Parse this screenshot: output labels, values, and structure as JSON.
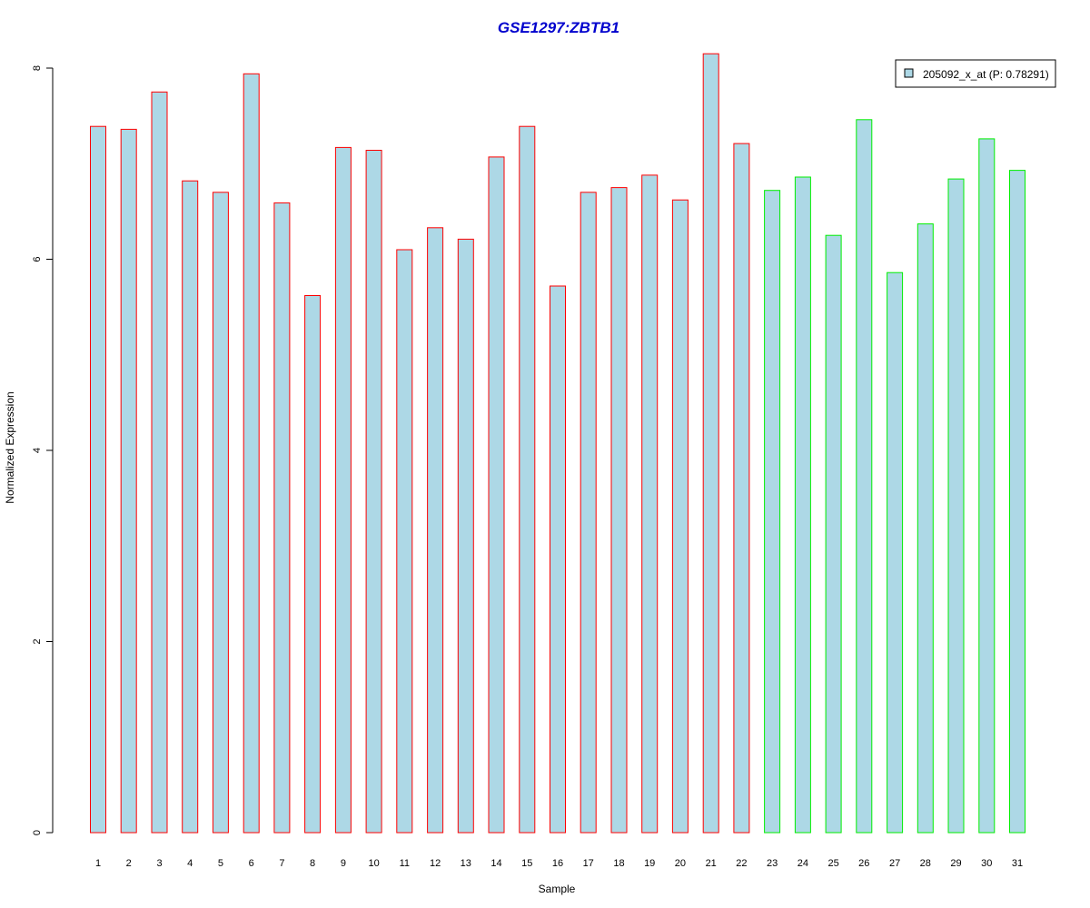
{
  "chart_data": {
    "type": "bar",
    "title": "GSE1297:ZBTB1",
    "xlabel": "Sample",
    "ylabel": "Normalized Expression",
    "ylim": [
      0,
      8
    ],
    "yticks": [
      "0",
      "2",
      "4",
      "6",
      "8"
    ],
    "categories": [
      "1",
      "2",
      "3",
      "4",
      "5",
      "6",
      "7",
      "8",
      "9",
      "10",
      "11",
      "12",
      "13",
      "14",
      "15",
      "16",
      "17",
      "18",
      "19",
      "20",
      "21",
      "22",
      "23",
      "24",
      "25",
      "26",
      "27",
      "28",
      "29",
      "30",
      "31"
    ],
    "series": [
      {
        "name": "205092_x_at (P: 0.78291)",
        "values": [
          7.39,
          7.36,
          7.75,
          6.82,
          6.7,
          7.94,
          6.59,
          5.62,
          7.17,
          7.14,
          6.1,
          6.33,
          6.21,
          7.07,
          7.39,
          5.72,
          6.7,
          6.75,
          6.88,
          6.62,
          8.15,
          7.21,
          6.72,
          6.86,
          6.25,
          7.46,
          5.86,
          6.37,
          6.84,
          7.26,
          6.93
        ]
      }
    ],
    "groups": [
      {
        "from": 1,
        "to": 22,
        "border_color": "#ff0000"
      },
      {
        "from": 23,
        "to": 31,
        "border_color": "#00ee00"
      }
    ],
    "bar_fill": "#add8e6",
    "title_color": "#0000cd",
    "legend_position": "top-right",
    "grid": false
  }
}
